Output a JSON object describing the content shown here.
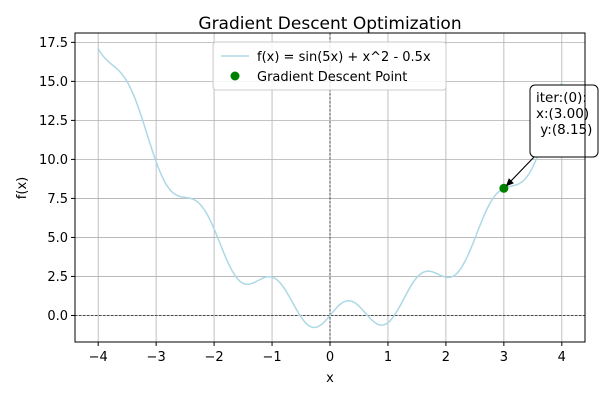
{
  "chart_data": {
    "type": "line",
    "title": "Gradient Descent Optimization",
    "xlabel": "x",
    "ylabel": "f(x)",
    "xlim": [
      -4.4,
      4.4
    ],
    "ylim": [
      -1.7,
      18.1
    ],
    "xticks": [
      -4,
      -3,
      -2,
      -1,
      0,
      1,
      2,
      3,
      4
    ],
    "xtick_labels": [
      "−4",
      "−3",
      "−2",
      "−1",
      "0",
      "1",
      "2",
      "3",
      "4"
    ],
    "yticks": [
      0.0,
      2.5,
      5.0,
      7.5,
      10.0,
      12.5,
      15.0,
      17.5
    ],
    "ytick_labels": [
      "0.0",
      "2.5",
      "5.0",
      "7.5",
      "10.0",
      "12.5",
      "15.0",
      "17.5"
    ],
    "grid": true,
    "legend_position": "top-center",
    "series": [
      {
        "name": "f(x) = sin(5x) + x^2 - 0.5x",
        "kind": "line",
        "color": "#add8e6",
        "function": "sin(5x) + x^2 - 0.5x",
        "x_range": [
          -4,
          4
        ]
      },
      {
        "name": "Gradient Descent Point",
        "kind": "marker",
        "color": "#008000",
        "points": [
          {
            "x": 3.0,
            "y": 8.15
          }
        ]
      }
    ],
    "annotations": [
      {
        "lines": [
          "iter:(0):",
          "x:(3.00)",
          " y:(8.15)"
        ],
        "target": {
          "x": 3.0,
          "y": 8.15
        }
      }
    ]
  }
}
